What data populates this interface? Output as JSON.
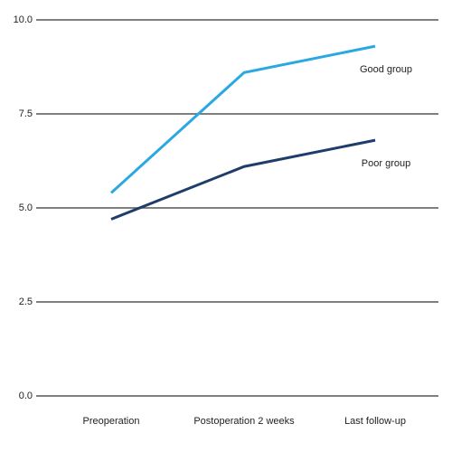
{
  "chart_data": {
    "type": "line",
    "categories": [
      "Preoperation",
      "Postoperation 2 weeks",
      "Last follow-up"
    ],
    "series": [
      {
        "name": "Good group",
        "color": "#2aa8e2",
        "values": [
          5.4,
          8.6,
          9.3
        ]
      },
      {
        "name": "Poor group",
        "color": "#1f3d6b",
        "values": [
          4.7,
          6.1,
          6.8
        ]
      }
    ],
    "ylim": [
      0,
      10
    ],
    "yticks": [
      {
        "value": 0,
        "label": "0.0"
      },
      2.5,
      {
        "value": 5,
        "label": "5.0"
      },
      7.5,
      {
        "value": 10,
        "label": "10.0"
      }
    ],
    "grid": true
  }
}
